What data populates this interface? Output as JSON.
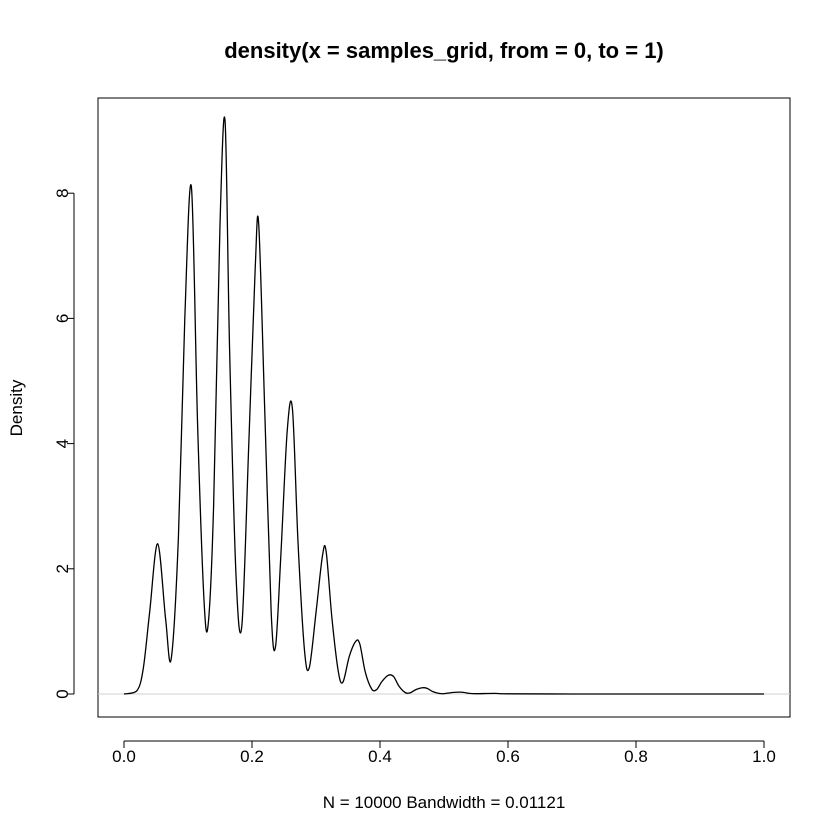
{
  "chart_data": {
    "type": "line",
    "title": "density(x = samples_grid, from = 0, to = 1)",
    "xlabel": "N = 10000   Bandwidth = 0.01121",
    "ylabel": "Density",
    "xlim": [
      0,
      1
    ],
    "ylim": [
      0,
      9.2
    ],
    "x_ticks": [
      0.0,
      0.2,
      0.4,
      0.6,
      0.8,
      1.0
    ],
    "x_tick_labels": [
      "0.0",
      "0.2",
      "0.4",
      "0.6",
      "0.8",
      "1.0"
    ],
    "y_ticks": [
      0,
      2,
      4,
      6,
      8
    ],
    "y_tick_labels": [
      "0",
      "2",
      "4",
      "6",
      "8"
    ],
    "zero_line": true,
    "series": [
      {
        "x": [
          0.0,
          0.02,
          0.03,
          0.04,
          0.0526,
          0.065,
          0.0737,
          0.085,
          0.095,
          0.1053,
          0.115,
          0.125,
          0.1316,
          0.14,
          0.15,
          0.1579,
          0.165,
          0.175,
          0.1842,
          0.195,
          0.205,
          0.2105,
          0.22,
          0.23,
          0.2368,
          0.245,
          0.255,
          0.2632,
          0.272,
          0.282,
          0.2895,
          0.3,
          0.31,
          0.3158,
          0.325,
          0.335,
          0.3421,
          0.352,
          0.362,
          0.3684,
          0.377,
          0.387,
          0.3947,
          0.403,
          0.413,
          0.4211,
          0.43,
          0.44,
          0.4474,
          0.456,
          0.466,
          0.4737,
          0.482,
          0.492,
          0.5,
          0.51,
          0.5263,
          0.54,
          0.55,
          0.5789,
          0.6,
          0.7,
          0.8,
          0.9,
          1.0
        ],
        "y": [
          0.0,
          0.05,
          0.4,
          1.3,
          2.4,
          1.2,
          0.56,
          2.5,
          6.0,
          8.1,
          4.3,
          1.5,
          1.12,
          3.0,
          7.5,
          9.15,
          5.5,
          1.9,
          1.1,
          4.0,
          6.8,
          7.5,
          4.5,
          1.3,
          0.76,
          2.2,
          4.2,
          4.55,
          2.4,
          0.7,
          0.42,
          1.3,
          2.2,
          2.28,
          1.2,
          0.35,
          0.19,
          0.6,
          0.84,
          0.8,
          0.35,
          0.08,
          0.07,
          0.2,
          0.3,
          0.28,
          0.12,
          0.02,
          0.02,
          0.07,
          0.1,
          0.09,
          0.04,
          0.01,
          0.005,
          0.02,
          0.03,
          0.01,
          0.005,
          0.01,
          0.003,
          0.0,
          0.0,
          0.0,
          0.0
        ]
      }
    ]
  }
}
